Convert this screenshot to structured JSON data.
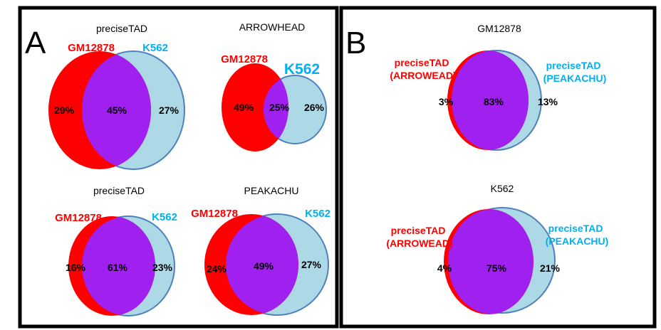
{
  "panels": [
    {
      "letter": "A",
      "venns": [
        {
          "title": "preciseTAD",
          "left_label": "GM12878",
          "right_label": "K562",
          "left_pct": "29%",
          "mid_pct": "45%",
          "right_pct": "27%"
        },
        {
          "title": "ARROWHEAD",
          "left_label": "GM12878",
          "right_label": "K562",
          "left_pct": "49%",
          "mid_pct": "25%",
          "right_pct": "26%"
        },
        {
          "title": "preciseTAD",
          "left_label": "GM12878",
          "right_label": "K562",
          "left_pct": "16%",
          "mid_pct": "61%",
          "right_pct": "23%"
        },
        {
          "title": "PEAKACHU",
          "left_label": "GM12878",
          "right_label": "K562",
          "left_pct": "24%",
          "mid_pct": "49%",
          "right_pct": "27%"
        }
      ]
    },
    {
      "letter": "B",
      "venns": [
        {
          "title": "GM12878",
          "left_label": [
            "preciseTAD",
            "(ARROWEAD)"
          ],
          "right_label": [
            "preciseTAD",
            "(PEAKACHU)"
          ],
          "left_pct": "3%",
          "mid_pct": "83%",
          "right_pct": "13%"
        },
        {
          "title": "K562",
          "left_label": [
            "preciseTAD",
            "(ARROWEAD)"
          ],
          "right_label": [
            "preciseTAD",
            "(PEAKACHU)"
          ],
          "left_pct": "4%",
          "mid_pct": "75%",
          "right_pct": "21%"
        }
      ]
    }
  ],
  "colors": {
    "left_fill": "#ff0000",
    "right_fill": "#add8e6",
    "overlap_fill": "#a020f0",
    "right_stroke": "#4f81bd",
    "left_text": "#ff0000",
    "right_text": "#00b0f0",
    "frame": "#000000"
  }
}
